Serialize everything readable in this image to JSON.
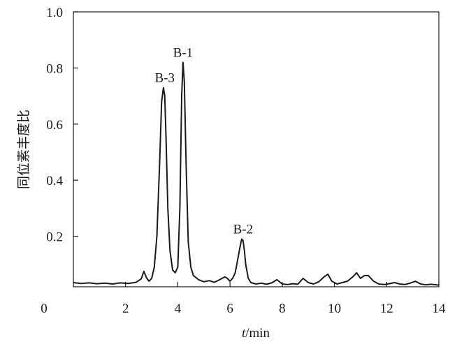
{
  "chart_data": {
    "type": "line",
    "title": "",
    "xlabel_italic": "t",
    "xlabel_rest": "/min",
    "ylabel": "同位素丰度比",
    "xlim": [
      0,
      14
    ],
    "ylim": [
      0.02,
      1.0
    ],
    "origin_label": "0",
    "x_ticks": [
      2,
      4,
      6,
      8,
      10,
      12,
      14
    ],
    "y_ticks": [
      0.2,
      0.4,
      0.6,
      0.8,
      1.0
    ],
    "x_tick_labels": [
      "2",
      "4",
      "6",
      "8",
      "10",
      "12",
      "14"
    ],
    "y_tick_labels": [
      "0.2",
      "0.4",
      "0.6",
      "0.8",
      "1.0"
    ],
    "grid": false,
    "line_color": "#1a1a1a",
    "peaks": [
      {
        "label": "B-3",
        "x": 3.5,
        "y": 0.73
      },
      {
        "label": "B-1",
        "x": 4.2,
        "y": 0.82
      },
      {
        "label": "B-2",
        "x": 6.5,
        "y": 0.19
      }
    ],
    "series": [
      {
        "x": [
          0.0,
          0.3,
          0.6,
          0.9,
          1.2,
          1.5,
          1.8,
          2.1,
          2.4,
          2.6,
          2.7,
          2.8,
          2.9,
          3.0,
          3.1,
          3.2,
          3.3,
          3.38,
          3.45,
          3.5,
          3.55,
          3.62,
          3.7,
          3.8,
          3.9,
          4.0,
          4.08,
          4.15,
          4.2,
          4.25,
          4.32,
          4.4,
          4.5,
          4.6,
          4.8,
          5.0,
          5.2,
          5.4,
          5.6,
          5.8,
          5.9,
          6.0,
          6.1,
          6.2,
          6.3,
          6.4,
          6.45,
          6.5,
          6.55,
          6.6,
          6.7,
          6.8,
          7.0,
          7.2,
          7.4,
          7.6,
          7.8,
          8.0,
          8.2,
          8.4,
          8.6,
          8.8,
          9.0,
          9.2,
          9.4,
          9.6,
          9.75,
          9.9,
          10.1,
          10.3,
          10.5,
          10.7,
          10.85,
          11.0,
          11.15,
          11.3,
          11.5,
          11.7,
          11.9,
          12.1,
          12.3,
          12.5,
          12.7,
          12.9,
          13.1,
          13.3,
          13.5,
          13.7,
          14.0
        ],
        "values": [
          0.035,
          0.032,
          0.034,
          0.031,
          0.033,
          0.03,
          0.034,
          0.032,
          0.036,
          0.048,
          0.075,
          0.052,
          0.04,
          0.05,
          0.09,
          0.2,
          0.45,
          0.68,
          0.73,
          0.7,
          0.55,
          0.3,
          0.15,
          0.08,
          0.07,
          0.09,
          0.3,
          0.7,
          0.82,
          0.75,
          0.45,
          0.18,
          0.09,
          0.06,
          0.045,
          0.038,
          0.042,
          0.036,
          0.045,
          0.055,
          0.05,
          0.04,
          0.05,
          0.07,
          0.12,
          0.17,
          0.19,
          0.185,
          0.15,
          0.1,
          0.05,
          0.035,
          0.03,
          0.033,
          0.029,
          0.034,
          0.045,
          0.03,
          0.028,
          0.031,
          0.029,
          0.05,
          0.035,
          0.03,
          0.038,
          0.055,
          0.065,
          0.04,
          0.03,
          0.035,
          0.04,
          0.055,
          0.07,
          0.05,
          0.06,
          0.06,
          0.04,
          0.03,
          0.028,
          0.031,
          0.035,
          0.03,
          0.028,
          0.033,
          0.04,
          0.03,
          0.027,
          0.029,
          0.026
        ]
      }
    ]
  }
}
